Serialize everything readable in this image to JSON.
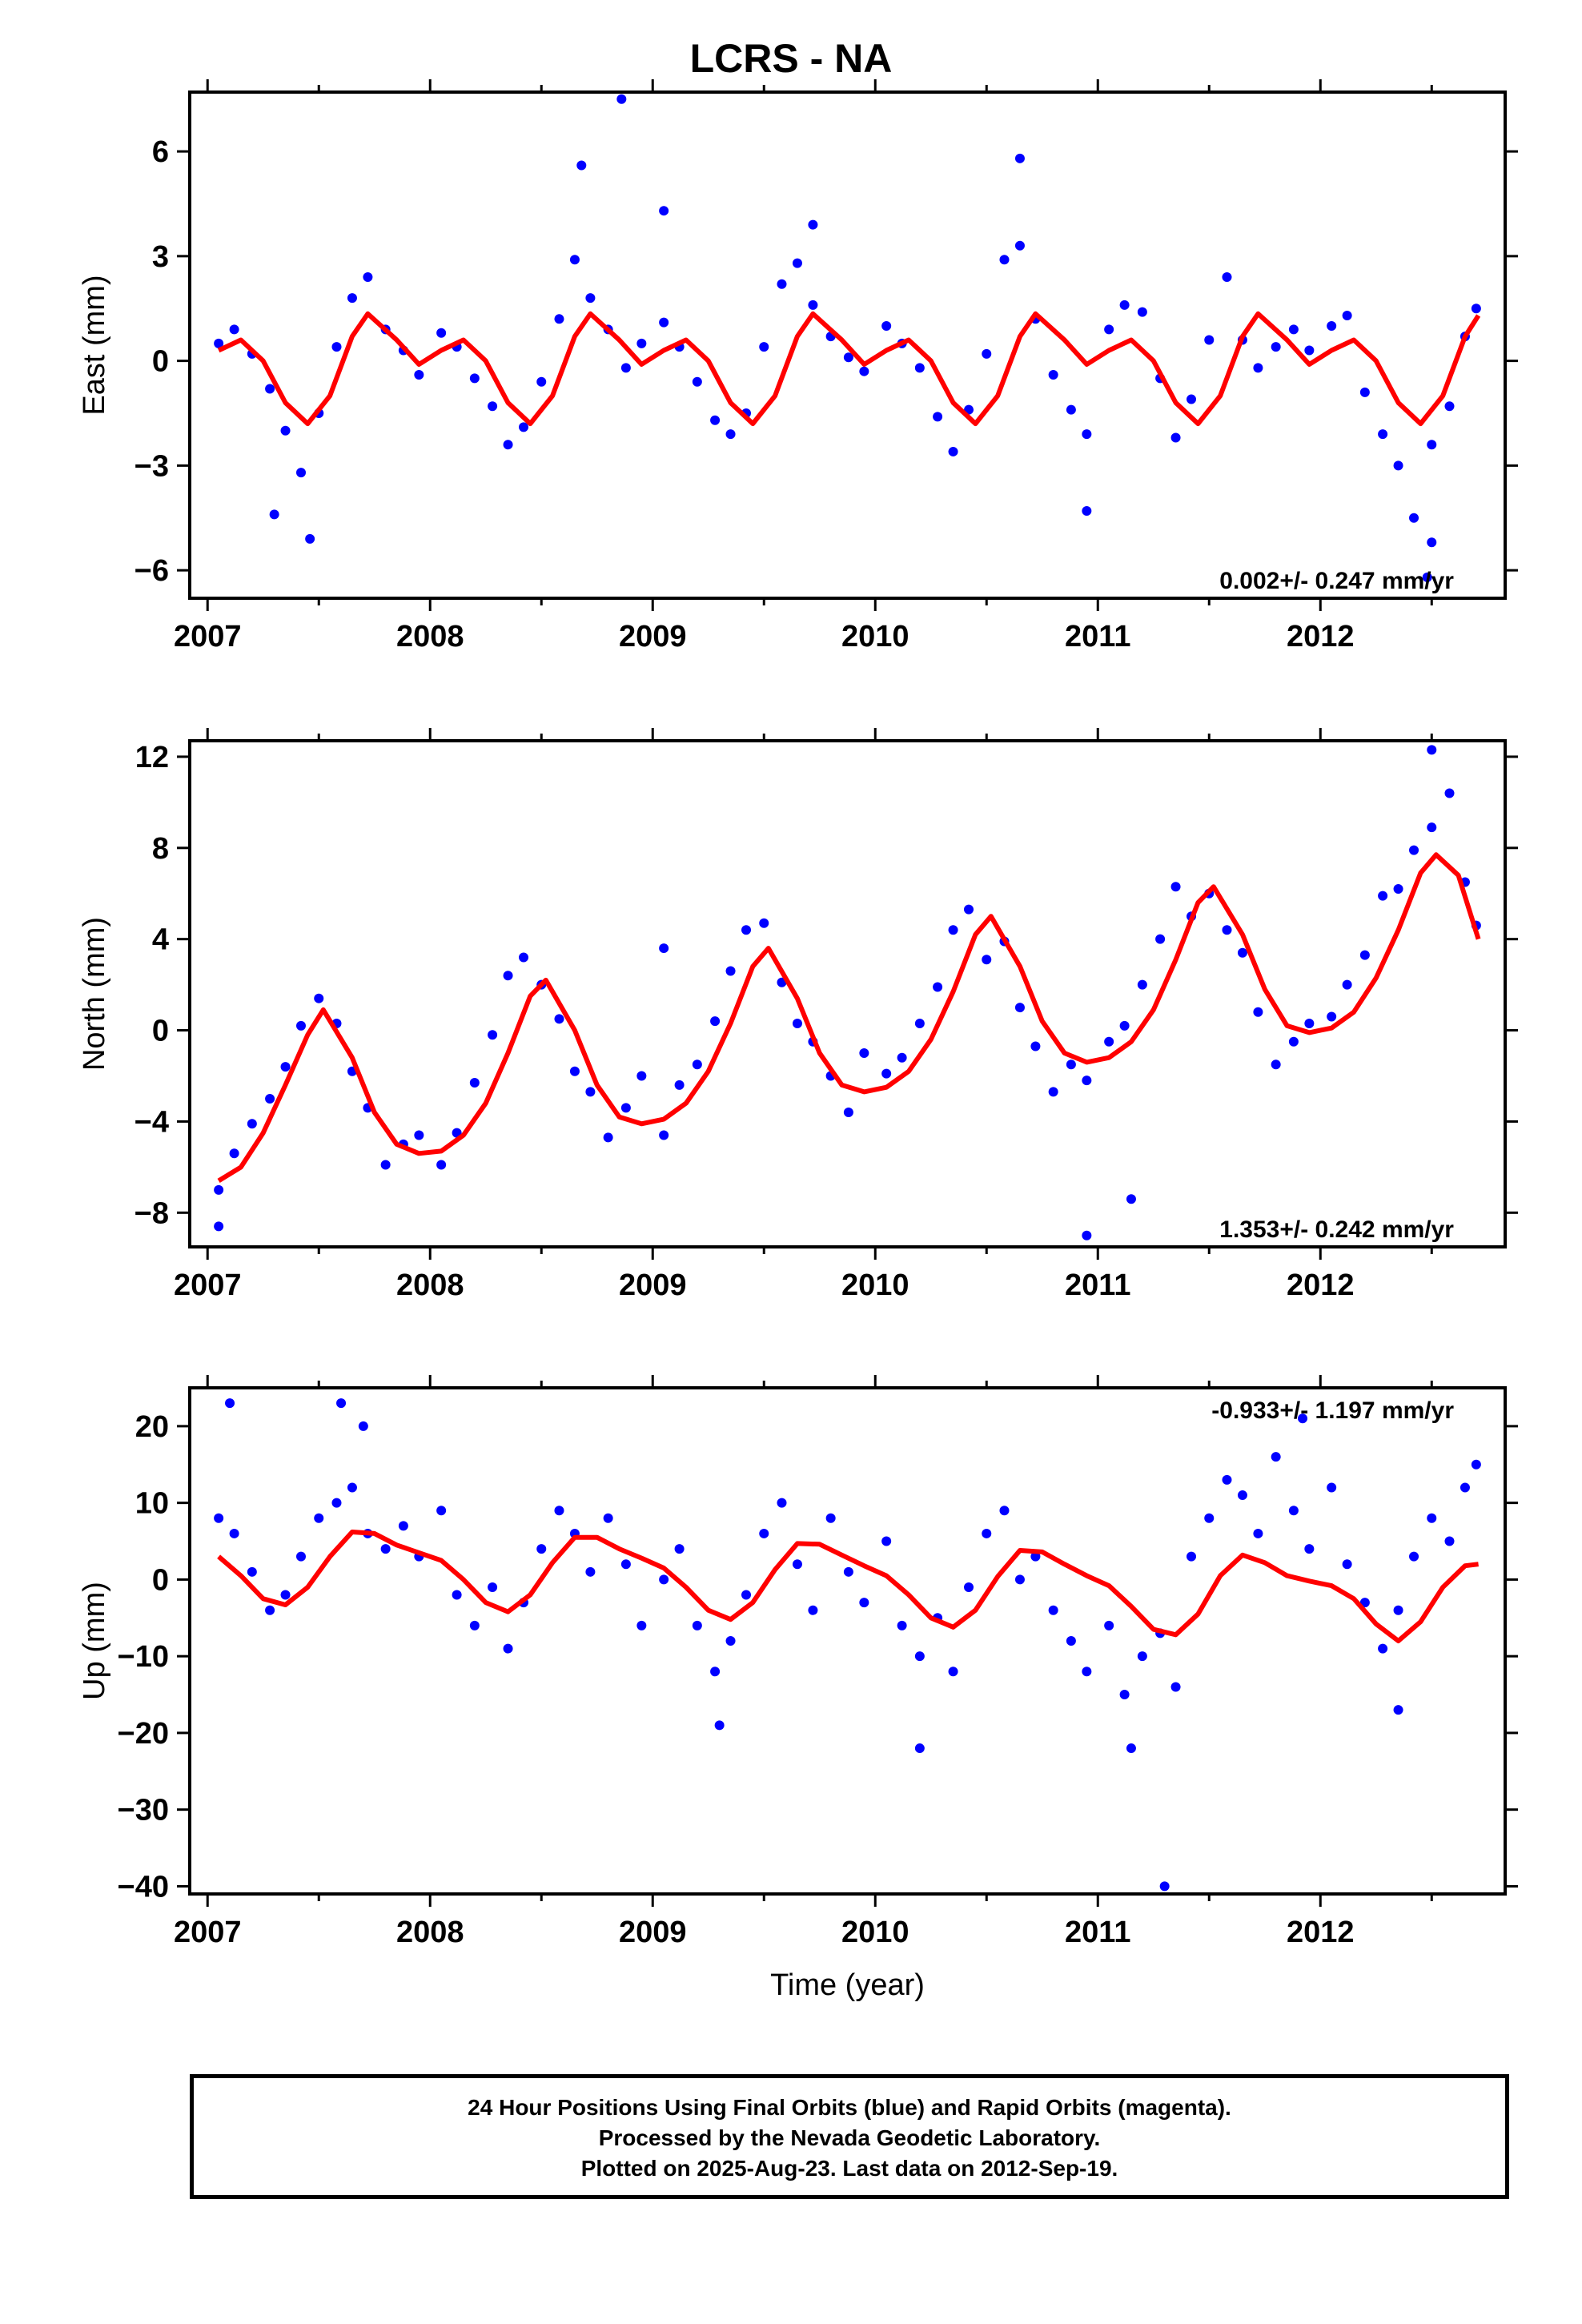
{
  "title": "LCRS - NA",
  "footer": {
    "line1": "24 Hour Positions Using Final Orbits (blue) and Rapid Orbits (magenta).",
    "line2": "Processed by the Nevada Geodetic Laboratory.",
    "line3": "Plotted on 2025-Aug-23. Last data on 2012-Sep-19."
  },
  "colors": {
    "data": "#0000ff",
    "model": "#ff0000",
    "axis": "#000000"
  },
  "chart_data": [
    {
      "type": "scatter",
      "ylabel": "East (mm)",
      "xlabel": "",
      "xlim": [
        2006.92,
        2012.83
      ],
      "ylim": [
        -6.8,
        7.7
      ],
      "xticks": [
        2007,
        2008,
        2009,
        2010,
        2011,
        2012
      ],
      "yticks": [
        6,
        3,
        0,
        -3,
        -6
      ],
      "ytick_labels": [
        "6",
        "3",
        "0",
        "−3",
        "−6"
      ],
      "rate_label": "0.002+/- 0.247 mm/yr",
      "rate_position": "bottom-right",
      "model": {
        "name": "",
        "x": [
          2007.05,
          2007.15,
          2007.25,
          2007.35,
          2007.45,
          2007.55,
          2007.65,
          2007.72,
          2007.85,
          2007.95,
          2008.05,
          2008.15,
          2008.25,
          2008.35,
          2008.45,
          2008.55,
          2008.65,
          2008.72,
          2008.85,
          2008.95,
          2009.05,
          2009.15,
          2009.25,
          2009.35,
          2009.45,
          2009.55,
          2009.65,
          2009.72,
          2009.85,
          2009.95,
          2010.05,
          2010.15,
          2010.25,
          2010.35,
          2010.45,
          2010.55,
          2010.65,
          2010.72,
          2010.85,
          2010.95,
          2011.05,
          2011.15,
          2011.25,
          2011.35,
          2011.45,
          2011.55,
          2011.65,
          2011.72,
          2011.85,
          2011.95,
          2012.05,
          2012.15,
          2012.25,
          2012.35,
          2012.45,
          2012.55,
          2012.65,
          2012.71
        ],
        "y": [
          0.3,
          0.6,
          0.0,
          -1.2,
          -1.8,
          -1.0,
          0.7,
          1.35,
          0.6,
          -0.1,
          0.3,
          0.6,
          0.0,
          -1.2,
          -1.8,
          -1.0,
          0.7,
          1.35,
          0.6,
          -0.1,
          0.3,
          0.6,
          0.0,
          -1.2,
          -1.8,
          -1.0,
          0.7,
          1.35,
          0.6,
          -0.1,
          0.3,
          0.6,
          0.0,
          -1.2,
          -1.8,
          -1.0,
          0.7,
          1.35,
          0.6,
          -0.1,
          0.3,
          0.6,
          0.0,
          -1.2,
          -1.8,
          -1.0,
          0.7,
          1.35,
          0.6,
          -0.1,
          0.3,
          0.6,
          0.0,
          -1.2,
          -1.8,
          -1.0,
          0.7,
          1.3
        ]
      },
      "points_x": [
        2007.05,
        2007.12,
        2007.2,
        2007.28,
        2007.35,
        2007.42,
        2007.5,
        2007.58,
        2007.65,
        2007.72,
        2007.8,
        2007.88,
        2007.95,
        2008.05,
        2008.12,
        2008.2,
        2008.28,
        2008.35,
        2008.42,
        2008.5,
        2008.58,
        2008.65,
        2008.72,
        2008.8,
        2008.88,
        2008.95,
        2009.05,
        2009.12,
        2009.2,
        2009.28,
        2009.35,
        2009.42,
        2009.5,
        2009.58,
        2009.65,
        2009.72,
        2009.8,
        2009.88,
        2009.95,
        2010.05,
        2010.12,
        2010.2,
        2010.28,
        2010.35,
        2010.42,
        2010.5,
        2010.58,
        2010.65,
        2010.72,
        2010.8,
        2010.88,
        2010.95,
        2011.05,
        2011.12,
        2011.2,
        2011.28,
        2011.35,
        2011.42,
        2011.5,
        2011.58,
        2011.65,
        2011.72,
        2011.8,
        2011.88,
        2011.95,
        2012.05,
        2012.12,
        2012.2,
        2012.28,
        2012.35,
        2012.42,
        2012.5,
        2012.58,
        2012.65,
        2012.7,
        2007.3,
        2007.46,
        2008.68,
        2008.86,
        2009.05,
        2009.72,
        2010.65,
        2010.95,
        2012.5,
        2012.48
      ],
      "points_y": [
        0.5,
        0.9,
        0.2,
        -0.8,
        -2.0,
        -3.2,
        -1.5,
        0.4,
        1.8,
        2.4,
        0.9,
        0.3,
        -0.4,
        0.8,
        0.4,
        -0.5,
        -1.3,
        -2.4,
        -1.9,
        -0.6,
        1.2,
        2.9,
        1.8,
        0.9,
        -0.2,
        0.5,
        1.1,
        0.4,
        -0.6,
        -1.7,
        -2.1,
        -1.5,
        0.4,
        2.2,
        2.8,
        1.6,
        0.7,
        0.1,
        -0.3,
        1.0,
        0.5,
        -0.2,
        -1.6,
        -2.6,
        -1.4,
        0.2,
        2.9,
        3.3,
        1.2,
        -0.4,
        -1.4,
        -2.1,
        0.9,
        1.6,
        1.4,
        -0.5,
        -2.2,
        -1.1,
        0.6,
        2.4,
        0.6,
        -0.2,
        0.4,
        0.9,
        0.3,
        1.0,
        1.3,
        -0.9,
        -2.1,
        -3.0,
        -4.5,
        -2.4,
        -1.3,
        0.7,
        1.5,
        -4.4,
        -5.1,
        5.6,
        7.5,
        4.3,
        3.9,
        5.8,
        -4.3,
        -5.2,
        -6.2
      ]
    },
    {
      "type": "scatter",
      "ylabel": "North (mm)",
      "xlabel": "",
      "xlim": [
        2006.92,
        2012.83
      ],
      "ylim": [
        -9.5,
        12.7
      ],
      "xticks": [
        2007,
        2008,
        2009,
        2010,
        2011,
        2012
      ],
      "yticks": [
        12,
        8,
        4,
        0,
        -4,
        -8
      ],
      "ytick_labels": [
        "12",
        "8",
        "4",
        "0",
        "−4",
        "−8"
      ],
      "rate_label": "1.353+/- 0.242 mm/yr",
      "rate_position": "bottom-right",
      "model": {
        "name": "",
        "x": [
          2007.05,
          2007.15,
          2007.25,
          2007.35,
          2007.45,
          2007.52,
          2007.65,
          2007.75,
          2007.85,
          2007.95,
          2008.05,
          2008.15,
          2008.25,
          2008.35,
          2008.45,
          2008.52,
          2008.65,
          2008.75,
          2008.85,
          2008.95,
          2009.05,
          2009.15,
          2009.25,
          2009.35,
          2009.45,
          2009.52,
          2009.65,
          2009.75,
          2009.85,
          2009.95,
          2010.05,
          2010.15,
          2010.25,
          2010.35,
          2010.45,
          2010.52,
          2010.65,
          2010.75,
          2010.85,
          2010.95,
          2011.05,
          2011.15,
          2011.25,
          2011.35,
          2011.45,
          2011.52,
          2011.65,
          2011.75,
          2011.85,
          2011.95,
          2012.05,
          2012.15,
          2012.25,
          2012.35,
          2012.45,
          2012.52,
          2012.62,
          2012.71
        ],
        "y": [
          -6.6,
          -6.0,
          -4.5,
          -2.4,
          -0.2,
          0.9,
          -1.2,
          -3.6,
          -5.0,
          -5.4,
          -5.3,
          -4.6,
          -3.2,
          -1.0,
          1.5,
          2.2,
          0.0,
          -2.4,
          -3.8,
          -4.1,
          -3.9,
          -3.2,
          -1.8,
          0.3,
          2.8,
          3.6,
          1.4,
          -1.0,
          -2.4,
          -2.7,
          -2.5,
          -1.8,
          -0.4,
          1.7,
          4.2,
          5.0,
          2.8,
          0.4,
          -1.0,
          -1.4,
          -1.2,
          -0.5,
          0.9,
          3.1,
          5.6,
          6.3,
          4.2,
          1.8,
          0.2,
          -0.1,
          0.1,
          0.8,
          2.3,
          4.4,
          6.9,
          7.7,
          6.8,
          4.0
        ]
      },
      "points_x": [
        2007.05,
        2007.12,
        2007.2,
        2007.28,
        2007.35,
        2007.42,
        2007.5,
        2007.58,
        2007.65,
        2007.72,
        2007.8,
        2007.88,
        2007.95,
        2008.05,
        2008.12,
        2008.2,
        2008.28,
        2008.35,
        2008.42,
        2008.5,
        2008.58,
        2008.65,
        2008.72,
        2008.8,
        2008.88,
        2008.95,
        2009.05,
        2009.12,
        2009.2,
        2009.28,
        2009.35,
        2009.42,
        2009.5,
        2009.58,
        2009.65,
        2009.72,
        2009.8,
        2009.88,
        2009.95,
        2010.05,
        2010.12,
        2010.2,
        2010.28,
        2010.35,
        2010.42,
        2010.5,
        2010.58,
        2010.65,
        2010.72,
        2010.8,
        2010.88,
        2010.95,
        2011.05,
        2011.12,
        2011.2,
        2011.28,
        2011.35,
        2011.42,
        2011.5,
        2011.58,
        2011.65,
        2011.72,
        2011.8,
        2011.88,
        2011.95,
        2012.05,
        2012.12,
        2012.2,
        2012.28,
        2012.35,
        2012.42,
        2012.5,
        2012.58,
        2012.65,
        2012.7,
        2007.05,
        2009.05,
        2010.95,
        2011.15,
        2012.5
      ],
      "points_y": [
        -7.0,
        -5.4,
        -4.1,
        -3.0,
        -1.6,
        0.2,
        1.4,
        0.3,
        -1.8,
        -3.4,
        -5.9,
        -5.0,
        -4.6,
        -5.9,
        -4.5,
        -2.3,
        -0.2,
        2.4,
        3.2,
        2.0,
        0.5,
        -1.8,
        -2.7,
        -4.7,
        -3.4,
        -2.0,
        -4.6,
        -2.4,
        -1.5,
        0.4,
        2.6,
        4.4,
        4.7,
        2.1,
        0.3,
        -0.5,
        -2.0,
        -3.6,
        -1.0,
        -1.9,
        -1.2,
        0.3,
        1.9,
        4.4,
        5.3,
        3.1,
        3.9,
        1.0,
        -0.7,
        -2.7,
        -1.5,
        -2.2,
        -0.5,
        0.2,
        2.0,
        4.0,
        6.3,
        5.0,
        6.0,
        4.4,
        3.4,
        0.8,
        -1.5,
        -0.5,
        0.3,
        0.6,
        2.0,
        3.3,
        5.9,
        6.2,
        7.9,
        8.9,
        10.4,
        6.5,
        4.6,
        -8.6,
        3.6,
        -9.0,
        -7.4,
        12.3
      ]
    },
    {
      "type": "scatter",
      "ylabel": "Up (mm)",
      "xlabel": "Time (year)",
      "xlim": [
        2006.92,
        2012.83
      ],
      "ylim": [
        -41,
        25
      ],
      "xticks": [
        2007,
        2008,
        2009,
        2010,
        2011,
        2012
      ],
      "yticks": [
        20,
        10,
        0,
        -10,
        -20,
        -30,
        -40
      ],
      "ytick_labels": [
        "20",
        "10",
        "0",
        "−10",
        "−20",
        "−30",
        "−40"
      ],
      "rate_label": "-0.933+/- 1.197 mm/yr",
      "rate_position": "top-right",
      "model": {
        "name": "",
        "x": [
          2007.05,
          2007.15,
          2007.25,
          2007.35,
          2007.45,
          2007.55,
          2007.65,
          2007.75,
          2007.85,
          2007.95,
          2008.05,
          2008.15,
          2008.25,
          2008.35,
          2008.45,
          2008.55,
          2008.65,
          2008.75,
          2008.85,
          2008.95,
          2009.05,
          2009.15,
          2009.25,
          2009.35,
          2009.45,
          2009.55,
          2009.65,
          2009.75,
          2009.85,
          2009.95,
          2010.05,
          2010.15,
          2010.25,
          2010.35,
          2010.45,
          2010.55,
          2010.65,
          2010.75,
          2010.85,
          2010.95,
          2011.05,
          2011.15,
          2011.25,
          2011.35,
          2011.45,
          2011.55,
          2011.65,
          2011.75,
          2011.85,
          2011.95,
          2012.05,
          2012.15,
          2012.25,
          2012.35,
          2012.45,
          2012.55,
          2012.65,
          2012.71
        ],
        "y": [
          3.0,
          0.5,
          -2.5,
          -3.3,
          -1.0,
          3.0,
          6.2,
          6.0,
          4.5,
          3.5,
          2.5,
          0.0,
          -3.0,
          -4.2,
          -2.0,
          2.2,
          5.5,
          5.5,
          4.0,
          2.8,
          1.5,
          -1.0,
          -4.0,
          -5.2,
          -3.0,
          1.3,
          4.7,
          4.6,
          3.2,
          1.8,
          0.5,
          -2.0,
          -5.0,
          -6.2,
          -4.0,
          0.4,
          3.8,
          3.6,
          2.0,
          0.5,
          -0.8,
          -3.5,
          -6.5,
          -7.2,
          -4.5,
          0.5,
          3.2,
          2.2,
          0.5,
          -0.2,
          -0.8,
          -2.5,
          -5.8,
          -8.0,
          -5.5,
          -1.0,
          1.8,
          2.0
        ]
      },
      "points_x": [
        2007.05,
        2007.12,
        2007.2,
        2007.28,
        2007.35,
        2007.42,
        2007.5,
        2007.58,
        2007.65,
        2007.72,
        2007.8,
        2007.88,
        2007.95,
        2008.05,
        2008.12,
        2008.2,
        2008.28,
        2008.35,
        2008.42,
        2008.5,
        2008.58,
        2008.65,
        2008.72,
        2008.8,
        2008.88,
        2008.95,
        2009.05,
        2009.12,
        2009.2,
        2009.28,
        2009.35,
        2009.42,
        2009.5,
        2009.58,
        2009.65,
        2009.72,
        2009.8,
        2009.88,
        2009.95,
        2010.05,
        2010.12,
        2010.2,
        2010.28,
        2010.35,
        2010.42,
        2010.5,
        2010.58,
        2010.65,
        2010.72,
        2010.8,
        2010.88,
        2010.95,
        2011.05,
        2011.12,
        2011.2,
        2011.28,
        2011.35,
        2011.42,
        2011.5,
        2011.58,
        2011.65,
        2011.72,
        2011.8,
        2011.88,
        2011.95,
        2012.05,
        2012.12,
        2012.2,
        2012.28,
        2012.35,
        2012.42,
        2012.5,
        2012.58,
        2012.65,
        2012.7,
        2007.1,
        2007.6,
        2007.7,
        2009.3,
        2010.2,
        2011.15,
        2011.3,
        2011.92,
        2012.35
      ],
      "points_y": [
        8.0,
        6.0,
        1.0,
        -4.0,
        -2.0,
        3.0,
        8.0,
        10.0,
        12.0,
        6.0,
        4.0,
        7.0,
        3.0,
        9.0,
        -2.0,
        -6.0,
        -1.0,
        -9.0,
        -3.0,
        4.0,
        9.0,
        6.0,
        1.0,
        8.0,
        2.0,
        -6.0,
        0.0,
        4.0,
        -6.0,
        -12.0,
        -8.0,
        -2.0,
        6.0,
        10.0,
        2.0,
        -4.0,
        8.0,
        1.0,
        -3.0,
        5.0,
        -6.0,
        -10.0,
        -5.0,
        -12.0,
        -1.0,
        6.0,
        9.0,
        0.0,
        3.0,
        -4.0,
        -8.0,
        -12.0,
        -6.0,
        -15.0,
        -10.0,
        -7.0,
        -14.0,
        3.0,
        8.0,
        13.0,
        11.0,
        6.0,
        16.0,
        9.0,
        4.0,
        12.0,
        2.0,
        -3.0,
        -9.0,
        -4.0,
        3.0,
        8.0,
        5.0,
        12.0,
        15.0,
        23.0,
        23.0,
        20.0,
        -19.0,
        -22.0,
        -22.0,
        -40.0,
        21.0,
        -17.0
      ]
    }
  ]
}
